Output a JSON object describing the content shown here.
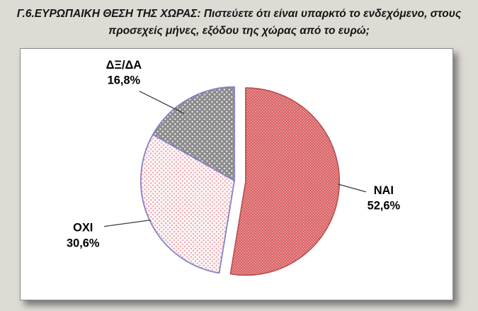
{
  "page": {
    "background": "#dedbd5"
  },
  "header": {
    "title": "Γ.6.ΕΥΡΩΠΑΙΚΗ ΘΕΣΗ ΤΗΣ ΧΩΡΑΣ: Πιστεύετε ότι είναι υπαρκτό το ενδεχόμενο, στους προσεχείς μήνες, εξόδου της χώρας από το ευρώ;"
  },
  "chart_data": {
    "type": "pie",
    "title": "Γ.6.ΕΥΡΩΠΑΙΚΗ ΘΕΣΗ ΤΗΣ ΧΩΡΑΣ: Πιστεύετε ότι είναι υπαρκτό το ενδεχόμενο, στους προσεχείς μήνες, εξόδου της χώρας από το ευρώ;",
    "categories": [
      "ΝΑΙ",
      "ΟΧΙ",
      "ΔΞ/ΔΑ"
    ],
    "values": [
      52.6,
      30.6,
      16.8
    ],
    "slices": [
      {
        "label": "ΝΑΙ",
        "value": 52.6,
        "percent_label": "52,6%",
        "base_color": "#d96062",
        "dot_color": "#f3cccc",
        "pattern": "dense-red-dot-grid",
        "exploded": true
      },
      {
        "label": "ΟΧΙ",
        "value": 30.6,
        "percent_label": "30,6%",
        "base_color": "#fdf4f5",
        "dot_color": "#dd8f96",
        "pattern": "light-pink-dots",
        "exploded": false
      },
      {
        "label": "ΔΞ/ΔΑ",
        "value": 16.8,
        "percent_label": "16,8%",
        "base_color": "#8c8c8c",
        "dot_color": "#ffffff",
        "pattern": "gray-white-dots",
        "exploded": false
      }
    ],
    "start_angle_deg": 0,
    "direction": "clockwise",
    "legend_position": "none",
    "labels": "outside-with-leader-lines",
    "outline_colors": {
      "nai": "#b5494b",
      "others": "#8282c8"
    }
  }
}
